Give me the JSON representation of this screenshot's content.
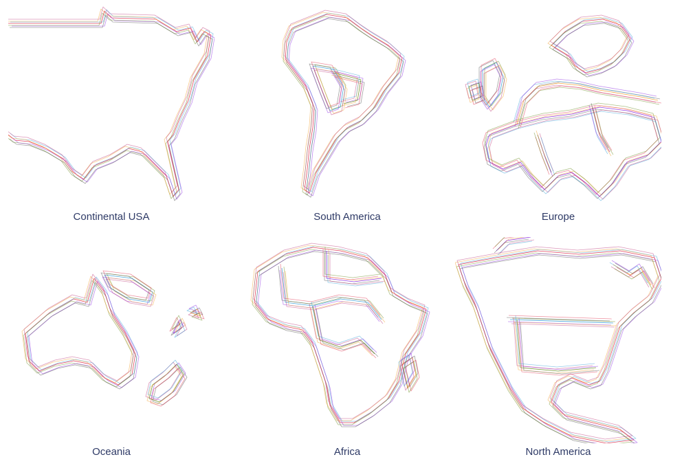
{
  "palette": [
    "#e0334f",
    "#3aa0d8",
    "#6b8e23",
    "#8a2be2",
    "#f0a030",
    "#555555",
    "#c04080"
  ],
  "maps": [
    {
      "key": "usa",
      "label": "Continental USA"
    },
    {
      "key": "samerica",
      "label": "South America"
    },
    {
      "key": "europe",
      "label": "Europe"
    },
    {
      "key": "oceania",
      "label": "Oceania"
    },
    {
      "key": "africa",
      "label": "Africa"
    },
    {
      "key": "namerica",
      "label": "North America"
    }
  ]
}
